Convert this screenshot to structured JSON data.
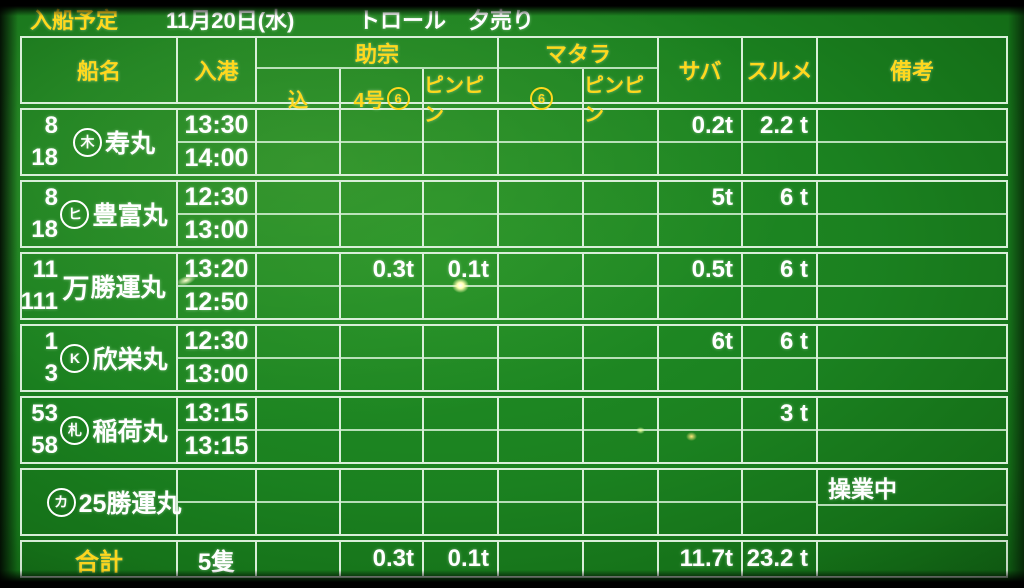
{
  "titlebar": {
    "label": "入船予定",
    "date": "11月20日(水)",
    "sale": "トロール　夕売り"
  },
  "header": {
    "ship": "船名",
    "arrival": "入港",
    "groups": [
      {
        "label": "助宗",
        "subs": [
          {
            "text": "込",
            "circle": ""
          },
          {
            "text": "4号",
            "circle": "6"
          },
          {
            "text": "ピンピン",
            "circle": ""
          }
        ]
      },
      {
        "label": "マタラ",
        "subs": [
          {
            "text": "",
            "circle": "6"
          },
          {
            "text": "ピンピン",
            "circle": ""
          }
        ]
      }
    ],
    "singles": [
      "サバ",
      "スルメ",
      "備考"
    ]
  },
  "ships": [
    {
      "numbers": [
        "8",
        "18"
      ],
      "mark": {
        "char": "木",
        "circled": true
      },
      "name": "寿丸",
      "times": [
        "13:30",
        "14:00"
      ],
      "values": [
        "",
        "",
        "",
        "",
        "",
        "0.2t",
        "2.2 t"
      ],
      "remark": ""
    },
    {
      "numbers": [
        "8",
        "18"
      ],
      "mark": {
        "char": "ヒ",
        "circled": true
      },
      "name": "豊富丸",
      "times": [
        "12:30",
        "13:00"
      ],
      "values": [
        "",
        "",
        "",
        "",
        "",
        "5t",
        "6 t"
      ],
      "remark": ""
    },
    {
      "numbers": [
        "11",
        "111"
      ],
      "mark": {
        "char": "万",
        "circled": false
      },
      "name": "勝運丸",
      "times": [
        "13:20",
        "12:50"
      ],
      "values": [
        "",
        "0.3t",
        "0.1t",
        "",
        "",
        "0.5t",
        "6 t"
      ],
      "remark": ""
    },
    {
      "numbers": [
        "1",
        "3"
      ],
      "mark": {
        "char": "K",
        "circled": true
      },
      "name": "欣栄丸",
      "times": [
        "12:30",
        "13:00"
      ],
      "values": [
        "",
        "",
        "",
        "",
        "",
        "6t",
        "6 t"
      ],
      "remark": ""
    },
    {
      "numbers": [
        "53",
        "58"
      ],
      "mark": {
        "char": "札",
        "circled": true
      },
      "name": "稲荷丸",
      "times": [
        "13:15",
        "13:15"
      ],
      "values": [
        "",
        "",
        "",
        "",
        "",
        "",
        "3 t"
      ],
      "remark": ""
    },
    {
      "numbers": [
        "",
        ""
      ],
      "mark": {
        "char": "カ",
        "circled": true
      },
      "name": "25勝運丸",
      "times": [
        "",
        ""
      ],
      "values": [
        "",
        "",
        "",
        "",
        "",
        "",
        ""
      ],
      "remark": "操業中"
    }
  ],
  "total": {
    "label": "合計",
    "count": "5隻",
    "values": [
      "",
      "0.3t",
      "0.1t",
      "",
      "",
      "11.7t",
      "23.2 t"
    ],
    "remark": ""
  },
  "colors": {
    "board_green": "#1b8120",
    "grid_line": "#d9efd9",
    "header_yellow": "#ffd81e",
    "data_white": "#ffffff"
  }
}
